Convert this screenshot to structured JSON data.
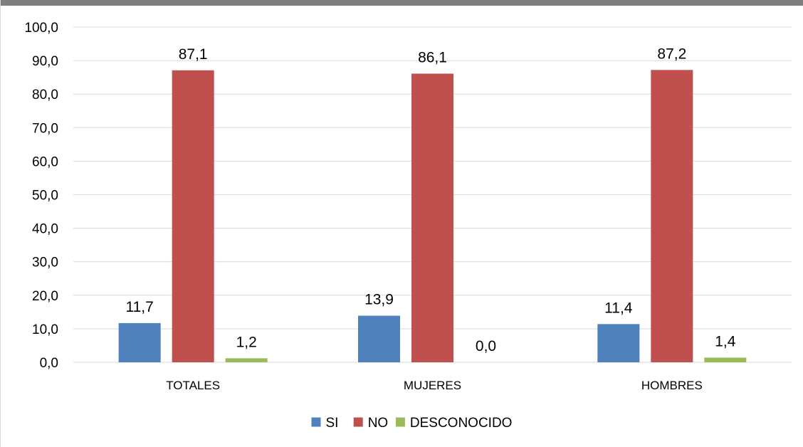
{
  "chart_data": {
    "type": "bar",
    "title": "",
    "xlabel": "",
    "ylabel": "",
    "categories": [
      "TOTALES",
      "MUJERES",
      "HOMBRES"
    ],
    "series": [
      {
        "name": "SI",
        "color": "#4f81bd",
        "values": [
          11.7,
          13.9,
          11.4
        ],
        "labels": [
          "11,7",
          "13,9",
          "11,4"
        ]
      },
      {
        "name": "NO",
        "color": "#c0504d",
        "values": [
          87.1,
          86.1,
          87.2
        ],
        "labels": [
          "87,1",
          "86,1",
          "87,2"
        ]
      },
      {
        "name": "DESCONOCIDO",
        "color": "#9bbb59",
        "values": [
          1.2,
          0.0,
          1.4
        ],
        "labels": [
          "1,2",
          "0,0",
          "1,4"
        ]
      }
    ],
    "ylim": [
      0,
      100
    ],
    "yticks": [
      0,
      10,
      20,
      30,
      40,
      50,
      60,
      70,
      80,
      90,
      100
    ],
    "ytick_labels": [
      "0,0",
      "10,0",
      "20,0",
      "30,0",
      "40,0",
      "50,0",
      "60,0",
      "70,0",
      "80,0",
      "90,0",
      "100,0"
    ],
    "grid": true,
    "legend": "bottom"
  }
}
